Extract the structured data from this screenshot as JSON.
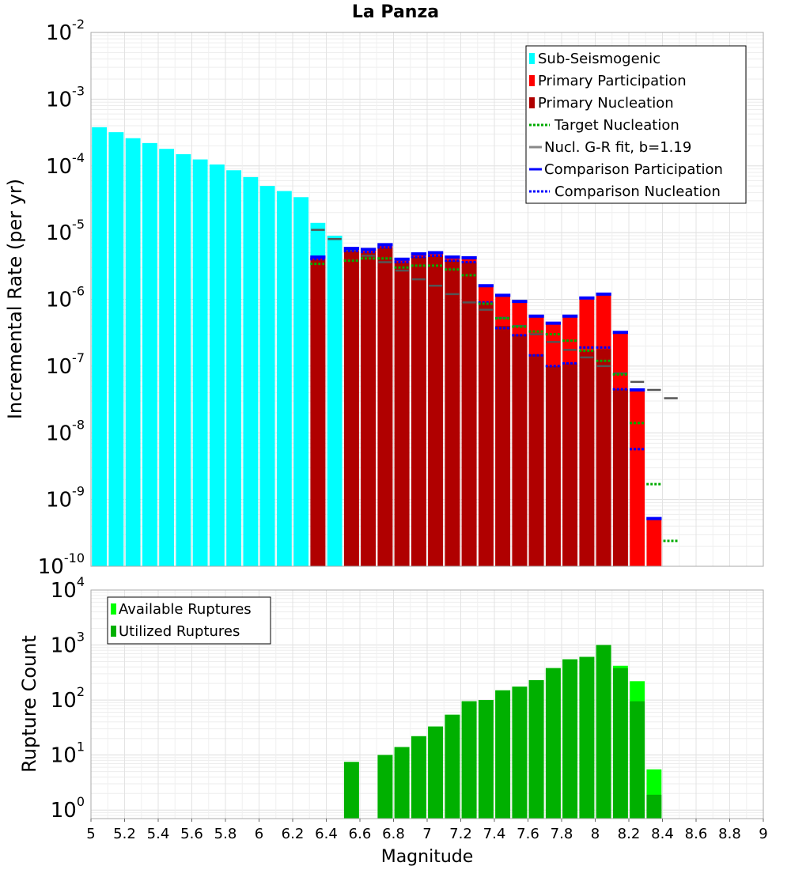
{
  "chart_data": [
    {
      "type": "bar",
      "title": "La Panza",
      "ylabel": "Incremental Rate (per yr)",
      "xlabel": "",
      "xlim": [
        5,
        9
      ],
      "ylim": [
        1e-10,
        0.01
      ],
      "yscale": "log",
      "grid": true,
      "bin_width": 0.1,
      "legend_position": "top-right",
      "legend": [
        {
          "label": "Sub-Seismogenic",
          "kind": "bar",
          "color": "#00ffff"
        },
        {
          "label": "Primary Participation",
          "kind": "bar",
          "color": "#ff0000"
        },
        {
          "label": "Primary Nucleation",
          "kind": "bar",
          "color": "#b00000"
        },
        {
          "label": "Target Nucleation",
          "kind": "dotted",
          "color": "#00aa00"
        },
        {
          "label": "Nucl. G-R fit, b=1.19",
          "kind": "solid",
          "color": "#888888"
        },
        {
          "label": "Comparison Participation",
          "kind": "solid",
          "color": "#0000ff"
        },
        {
          "label": "Comparison Nucleation",
          "kind": "dotted",
          "color": "#0000ff"
        }
      ],
      "series": [
        {
          "name": "Sub-Seismogenic",
          "x": [
            5.05,
            5.15,
            5.25,
            5.35,
            5.45,
            5.55,
            5.65,
            5.75,
            5.85,
            5.95,
            6.05,
            6.15,
            6.25,
            6.35,
            6.45
          ],
          "values": [
            0.00038,
            0.00032,
            0.00026,
            0.00022,
            0.00018,
            0.00015,
            0.000125,
            0.000105,
            8.6e-05,
            6.8e-05,
            5e-05,
            4.2e-05,
            3.4e-05,
            1.4e-05,
            9e-06
          ]
        },
        {
          "name": "Primary Participation",
          "x": [
            6.35,
            6.55,
            6.65,
            6.75,
            6.85,
            6.95,
            7.05,
            7.15,
            7.25,
            7.35,
            7.45,
            7.55,
            7.65,
            7.75,
            7.85,
            7.95,
            8.05,
            8.15,
            8.25,
            8.35
          ],
          "values": [
            4.3e-06,
            5.8e-06,
            5.6e-06,
            6.6e-06,
            4e-06,
            4.8e-06,
            5e-06,
            4.3e-06,
            4.2e-06,
            1.6e-06,
            1.15e-06,
            9.3e-07,
            5.6e-07,
            4.4e-07,
            5.6e-07,
            1.05e-06,
            1.2e-06,
            3.2e-07,
            4.4e-08,
            5.2e-10
          ]
        },
        {
          "name": "Primary Nucleation",
          "x": [
            6.35,
            6.55,
            6.65,
            6.75,
            6.85,
            6.95,
            7.05,
            7.15,
            7.25,
            7.35,
            7.45,
            7.55,
            7.65,
            7.75,
            7.85,
            7.95,
            8.05,
            8.15
          ],
          "values": [
            4e-06,
            5.3e-06,
            5.1e-06,
            6e-06,
            3.6e-06,
            4.3e-06,
            4.5e-06,
            3.8e-06,
            3.6e-06,
            9e-07,
            4e-07,
            3e-07,
            1.5e-07,
            1e-07,
            1.1e-07,
            1.7e-07,
            1.8e-07,
            4.5e-08
          ]
        },
        {
          "name": "Target Nucleation",
          "x": [
            6.35,
            6.55,
            6.65,
            6.75,
            6.85,
            6.95,
            7.05,
            7.15,
            7.25,
            7.35,
            7.45,
            7.55,
            7.65,
            7.75,
            7.85,
            7.95,
            8.05,
            8.15,
            8.25,
            8.35,
            8.45
          ],
          "values": [
            3.4e-06,
            3.8e-06,
            4.1e-06,
            4.1e-06,
            3e-06,
            3.2e-06,
            3.2e-06,
            2.8e-06,
            2.3e-06,
            8.6e-07,
            5.2e-07,
            3.9e-07,
            3.3e-07,
            3e-07,
            2.4e-07,
            1.7e-07,
            1.2e-07,
            7.5e-08,
            1.4e-08,
            1.7e-09,
            2.4e-10
          ]
        },
        {
          "name": "Nucl. G-R fit, b=1.19",
          "x": [
            6.35,
            6.45,
            6.55,
            6.65,
            6.75,
            6.85,
            6.95,
            7.05,
            7.15,
            7.25,
            7.35,
            7.45,
            7.55,
            7.65,
            7.75,
            7.85,
            7.95,
            8.05,
            8.15,
            8.25,
            8.35,
            8.45
          ],
          "values": [
            1.1e-05,
            8e-06,
            5.5e-06,
            4.5e-06,
            3.6e-06,
            2.7e-06,
            2e-06,
            1.6e-06,
            1.2e-06,
            9e-07,
            7e-07,
            5.3e-07,
            4e-07,
            3e-07,
            2.3e-07,
            1.75e-07,
            1.35e-07,
            1e-07,
            7.8e-08,
            5.8e-08,
            4.4e-08,
            3.3e-08
          ]
        },
        {
          "name": "Comparison Participation",
          "x": [
            6.35,
            6.55,
            6.65,
            6.75,
            6.85,
            6.95,
            7.05,
            7.15,
            7.25,
            7.35,
            7.45,
            7.55,
            7.65,
            7.75,
            7.85,
            7.95,
            8.05,
            8.15,
            8.25,
            8.35
          ],
          "values": [
            4.3e-06,
            5.8e-06,
            5.6e-06,
            6.6e-06,
            4e-06,
            4.8e-06,
            5e-06,
            4.3e-06,
            4.2e-06,
            1.6e-06,
            1.15e-06,
            9.3e-07,
            5.6e-07,
            4.4e-07,
            5.6e-07,
            1.05e-06,
            1.2e-06,
            3.2e-07,
            4.4e-08,
            5.2e-10
          ]
        },
        {
          "name": "Comparison Nucleation",
          "x": [
            6.35,
            6.55,
            6.65,
            6.75,
            6.85,
            6.95,
            7.05,
            7.15,
            7.25,
            7.35,
            7.45,
            7.55,
            7.65,
            7.75,
            7.85,
            7.95,
            8.05,
            8.15,
            8.25
          ],
          "values": [
            4e-06,
            5.3e-06,
            5.1e-06,
            6e-06,
            3.6e-06,
            4.3e-06,
            4.5e-06,
            3.8e-06,
            3.6e-06,
            9e-07,
            3.7e-07,
            2.9e-07,
            1.45e-07,
            1e-07,
            1.1e-07,
            1.9e-07,
            1.9e-07,
            4.5e-08,
            5.7e-09
          ]
        }
      ]
    },
    {
      "type": "bar",
      "title": "",
      "ylabel": "Rupture Count",
      "xlabel": "Magnitude",
      "xlim": [
        5,
        9
      ],
      "ylim": [
        0.7,
        10000
      ],
      "yscale": "log",
      "grid": true,
      "bin_width": 0.1,
      "legend_position": "top-left",
      "legend": [
        {
          "label": "Available Ruptures",
          "kind": "bar",
          "color": "#00ff00"
        },
        {
          "label": "Utilized Ruptures",
          "kind": "bar",
          "color": "#00b000"
        }
      ],
      "series": [
        {
          "name": "Available Ruptures",
          "x": [
            6.55,
            6.75,
            6.85,
            6.95,
            7.05,
            7.15,
            7.25,
            7.35,
            7.45,
            7.55,
            7.65,
            7.75,
            7.85,
            7.95,
            8.05,
            8.15,
            8.25,
            8.35
          ],
          "values": [
            7.5,
            10,
            14,
            22,
            33,
            54,
            95,
            100,
            150,
            175,
            230,
            380,
            550,
            610,
            1000,
            420,
            220,
            5.5
          ]
        },
        {
          "name": "Utilized Ruptures",
          "x": [
            6.55,
            6.75,
            6.85,
            6.95,
            7.05,
            7.15,
            7.25,
            7.35,
            7.45,
            7.55,
            7.65,
            7.75,
            7.85,
            7.95,
            8.05,
            8.15,
            8.25,
            8.35
          ],
          "values": [
            7.5,
            10,
            14,
            22,
            33,
            54,
            95,
            100,
            150,
            175,
            230,
            380,
            550,
            610,
            1000,
            380,
            95,
            1.9
          ]
        }
      ],
      "x_ticks": [
        "5",
        "5.2",
        "5.4",
        "5.6",
        "5.8",
        "6",
        "6.2",
        "6.4",
        "6.6",
        "6.8",
        "7",
        "7.2",
        "7.4",
        "7.6",
        "7.8",
        "8",
        "8.2",
        "8.4",
        "8.6",
        "8.8",
        "9"
      ]
    }
  ]
}
